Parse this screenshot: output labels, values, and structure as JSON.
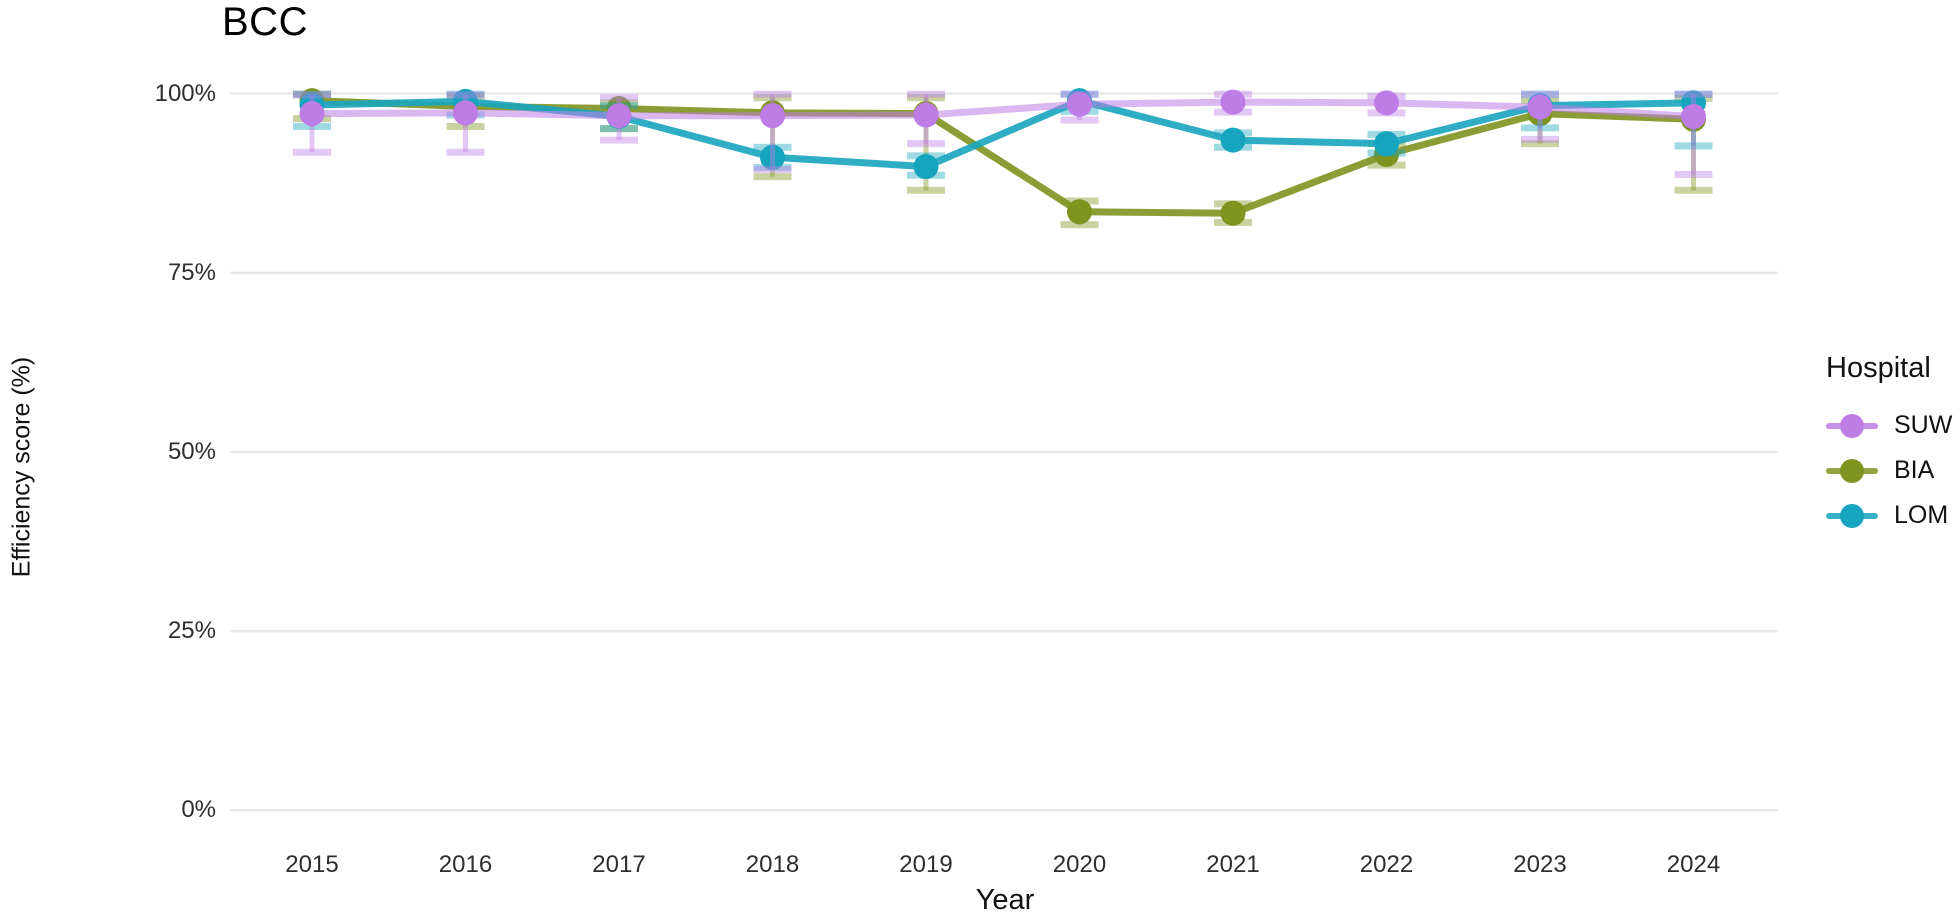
{
  "chart_data": {
    "type": "line",
    "title": "BCC",
    "xlabel": "Year",
    "ylabel": "Efficiency score (%)",
    "legend_title": "Hospital",
    "legend_position": "right",
    "grid": "horizontal",
    "ylim": [
      0,
      100
    ],
    "y_ticks": [
      {
        "label": "0%",
        "value": 0
      },
      {
        "label": "25%",
        "value": 25
      },
      {
        "label": "50%",
        "value": 50
      },
      {
        "label": "75%",
        "value": 75
      },
      {
        "label": "100%",
        "value": 100
      }
    ],
    "categories": [
      "2015",
      "2016",
      "2017",
      "2018",
      "2019",
      "2020",
      "2021",
      "2022",
      "2023",
      "2024"
    ],
    "series": [
      {
        "name": "SUW",
        "color": "#BD7CE6",
        "values": [
          97.2,
          97.3,
          96.9,
          96.9,
          97.0,
          98.5,
          98.8,
          98.7,
          98.1,
          96.8
        ],
        "err_low": [
          91.8,
          91.8,
          93.5,
          89.4,
          93.0,
          96.3,
          97.4,
          97.3,
          93.6,
          88.7
        ],
        "err_high": [
          99.8,
          99.8,
          99.4,
          99.9,
          99.9,
          99.9,
          99.9,
          99.6,
          99.9,
          99.9
        ]
      },
      {
        "name": "BIA",
        "color": "#7E941F",
        "values": [
          99.0,
          98.2,
          97.9,
          97.3,
          97.2,
          83.5,
          83.3,
          91.5,
          97.2,
          96.4
        ],
        "err_low": [
          96.5,
          95.4,
          95.1,
          88.4,
          86.5,
          81.7,
          82.0,
          90.0,
          93.0,
          86.5
        ],
        "err_high": [
          99.9,
          99.6,
          98.7,
          99.4,
          99.4,
          85.0,
          84.6,
          93.0,
          99.0,
          99.3
        ]
      },
      {
        "name": "LOM",
        "color": "#17A4BF",
        "values": [
          98.4,
          98.9,
          96.8,
          91.1,
          89.8,
          99.0,
          93.5,
          93.0,
          98.3,
          98.7
        ],
        "err_low": [
          95.4,
          97.0,
          95.1,
          89.7,
          88.6,
          97.5,
          92.5,
          91.7,
          95.2,
          92.7
        ],
        "err_high": [
          99.9,
          99.9,
          98.3,
          92.5,
          91.3,
          99.9,
          94.5,
          94.3,
          99.9,
          99.9
        ]
      }
    ],
    "draw_order": [
      1,
      2,
      0
    ]
  }
}
